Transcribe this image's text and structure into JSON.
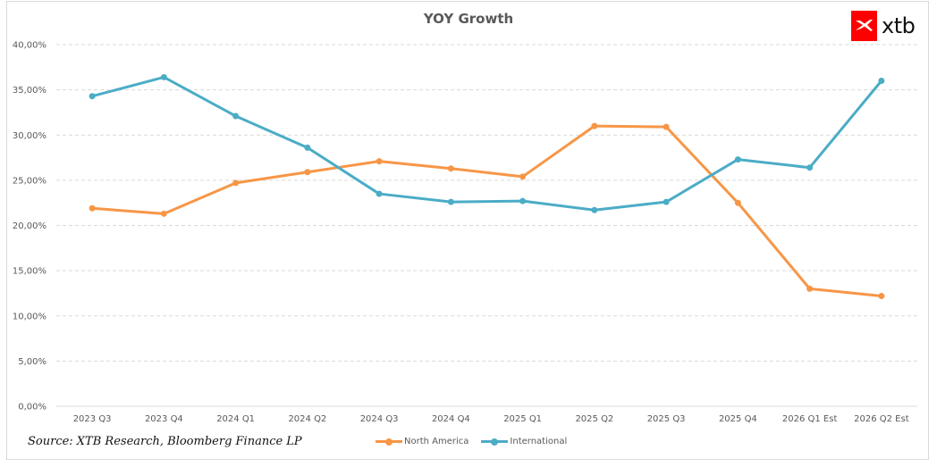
{
  "chart_data": {
    "type": "line",
    "title": "YOY Growth",
    "xlabel": "",
    "ylabel": "",
    "categories": [
      "2023 Q3",
      "2023 Q4",
      "2024 Q1",
      "2024 Q2",
      "2024 Q3",
      "2024 Q4",
      "2025 Q1",
      "2025 Q2",
      "2025 Q3",
      "2025 Q4",
      "2026 Q1 Est",
      "2026 Q2 Est"
    ],
    "series": [
      {
        "name": "North America",
        "color": "#f79646",
        "values": [
          21.9,
          21.3,
          24.7,
          25.9,
          27.1,
          26.3,
          25.4,
          31.0,
          30.9,
          22.5,
          13.0,
          12.2
        ]
      },
      {
        "name": "International",
        "color": "#4bacc6",
        "values": [
          34.3,
          36.4,
          32.1,
          28.6,
          23.5,
          22.6,
          22.7,
          21.7,
          22.6,
          27.3,
          26.4,
          36.0
        ]
      }
    ],
    "ylim": [
      0,
      40
    ],
    "yticks": [
      0,
      5,
      10,
      15,
      20,
      25,
      30,
      35,
      40
    ],
    "ytick_labels": [
      "0,00%",
      "5,00%",
      "10,00%",
      "15,00%",
      "20,00%",
      "25,00%",
      "30,00%",
      "35,00%",
      "40,00%"
    ],
    "grid": true,
    "legend_position": "bottom"
  },
  "source": "Source: XTB Research, Bloomberg Finance LP",
  "logo": {
    "text": "xtb",
    "brand_color": "#ff0000"
  },
  "legend": {
    "items": [
      {
        "label": "North America",
        "color": "#f79646"
      },
      {
        "label": "International",
        "color": "#4bacc6"
      }
    ]
  }
}
